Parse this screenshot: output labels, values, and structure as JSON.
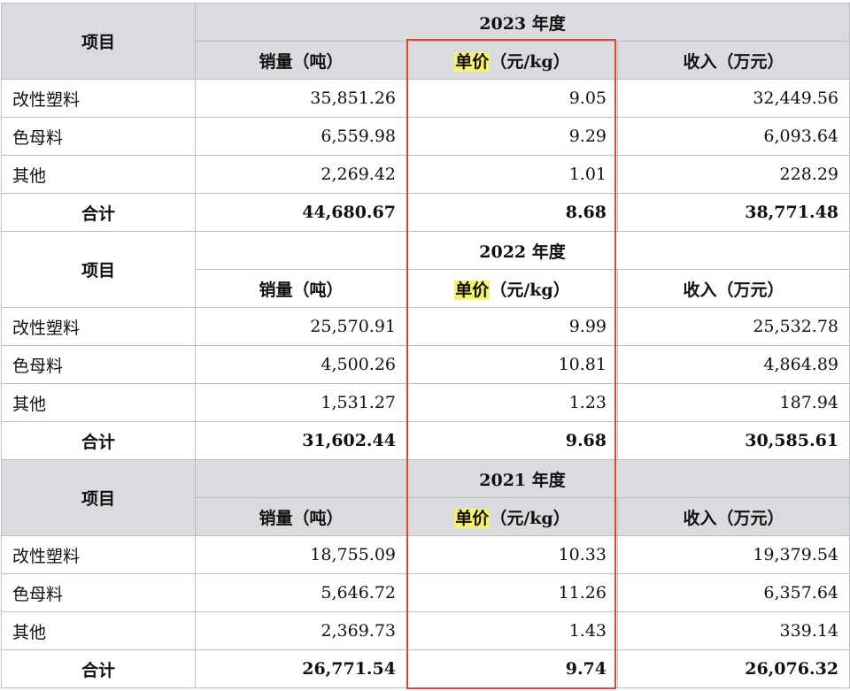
{
  "colors": {
    "header_grey": "#d9dbde",
    "grid": "#b9bec4",
    "highlight_yellow": "#f6f26b",
    "red_box": "#e2452f"
  },
  "item_header": "项目",
  "columns": {
    "qty": "销量（吨）",
    "price_hl": "单价",
    "price_rest": "（元/kg）",
    "revenue": "收入（万元）"
  },
  "sections": [
    {
      "year": "2023 年度",
      "rows": [
        {
          "label": "改性塑料",
          "qty": "35,851.26",
          "price": "9.05",
          "revenue": "32,449.56"
        },
        {
          "label": "色母料",
          "qty": "6,559.98",
          "price": "9.29",
          "revenue": "6,093.64"
        },
        {
          "label": "其他",
          "qty": "2,269.42",
          "price": "1.01",
          "revenue": "228.29"
        }
      ],
      "total": {
        "label": "合计",
        "qty": "44,680.67",
        "price": "8.68",
        "revenue": "38,771.48"
      }
    },
    {
      "year": "2022 年度",
      "rows": [
        {
          "label": "改性塑料",
          "qty": "25,570.91",
          "price": "9.99",
          "revenue": "25,532.78"
        },
        {
          "label": "色母料",
          "qty": "4,500.26",
          "price": "10.81",
          "revenue": "4,864.89"
        },
        {
          "label": "其他",
          "qty": "1,531.27",
          "price": "1.23",
          "revenue": "187.94"
        }
      ],
      "total": {
        "label": "合计",
        "qty": "31,602.44",
        "price": "9.68",
        "revenue": "30,585.61"
      }
    },
    {
      "year": "2021 年度",
      "rows": [
        {
          "label": "改性塑料",
          "qty": "18,755.09",
          "price": "10.33",
          "revenue": "19,379.54"
        },
        {
          "label": "色母料",
          "qty": "5,646.72",
          "price": "11.26",
          "revenue": "6,357.64"
        },
        {
          "label": "其他",
          "qty": "2,369.73",
          "price": "1.43",
          "revenue": "339.14"
        }
      ],
      "total": {
        "label": "合计",
        "qty": "26,771.54",
        "price": "9.74",
        "revenue": "26,076.32"
      }
    }
  ]
}
